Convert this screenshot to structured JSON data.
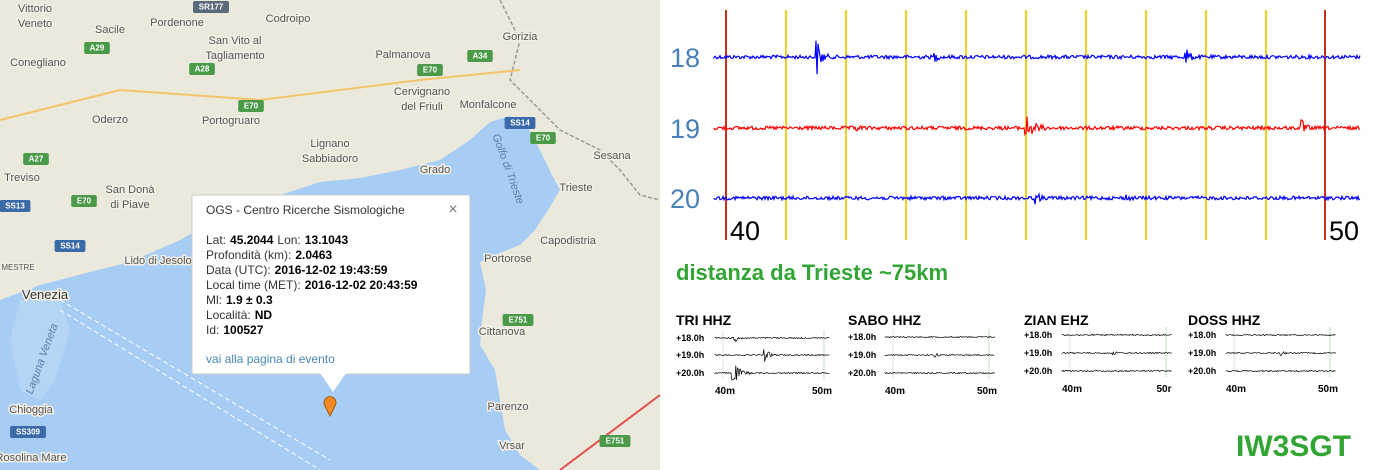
{
  "map": {
    "places": [
      "Vittorio",
      "Veneto",
      "Pordenone",
      "Codroipo",
      "Sacile",
      "San Vito al",
      "Tagliamento",
      "Palmanova",
      "Gorizia",
      "Conegliano",
      "Cervignano",
      "del Friuli",
      "Monfalcone",
      "Oderzo",
      "Portogruaro",
      "Sesana",
      "Treviso",
      "San Donà",
      "di Piave",
      "Lignano",
      "Sabbiadoro",
      "Grado",
      "Golfo di Trieste",
      "Trieste",
      "Capodistria",
      "Lido di Jesolo",
      "Portorose",
      "Venezia",
      "MESTRE",
      "Laguna Veneta",
      "Cittanova",
      "Chioggia",
      "Parenzo",
      "Vrsar",
      "Rosolina Mare"
    ],
    "roads": [
      "SR177",
      "A29",
      "A28",
      "A34",
      "E70",
      "E70",
      "A27",
      "SS14",
      "E70",
      "SS13",
      "SS14",
      "E70",
      "E751",
      "SS309",
      "E751"
    ]
  },
  "popup": {
    "title": "OGS - Centro Ricerche Sismologiche",
    "close": "×",
    "rows": [
      [
        {
          "label": "Lat:",
          "value": "45.2044"
        },
        {
          "label": "Lon:",
          "value": "13.1043"
        }
      ],
      [
        {
          "label": "Profondità (km):",
          "value": "2.0463"
        }
      ],
      [
        {
          "label": "Data (UTC):",
          "value": "2016-12-02 19:43:59"
        }
      ],
      [
        {
          "label": "Local time (MET):",
          "value": "2016-12-02 20:43:59"
        }
      ],
      [
        {
          "label": "Ml:",
          "value": "1.9 ± 0.3"
        }
      ],
      [
        {
          "label": "Località:",
          "value": "ND"
        }
      ],
      [
        {
          "label": "Id:",
          "value": "100527"
        }
      ]
    ],
    "link": "vai alla pagina di evento"
  },
  "seismogram": {
    "hours": [
      "18",
      "19",
      "20"
    ],
    "minutes": [
      "40",
      "50"
    ],
    "distance": "distanza da Trieste ~75km",
    "stations": [
      {
        "name": "TRI HHZ",
        "hours": [
          "+18.0h",
          "+19.0h",
          "+20.0h"
        ],
        "minutes": [
          "40m",
          "50m"
        ]
      },
      {
        "name": "SABO HHZ",
        "hours": [
          "+18.0h",
          "+19.0h",
          "+20.0h"
        ],
        "minutes": [
          "40m",
          "50m"
        ]
      },
      {
        "name": "ZIAN EHZ",
        "hours": [
          "+18.0h",
          "+19.0h",
          "+20.0h"
        ],
        "minutes": [
          "40m",
          "50r"
        ]
      },
      {
        "name": "DOSS HHZ",
        "hours": [
          "+18.0h",
          "+19.0h",
          "+20.0h"
        ],
        "minutes": [
          "40m",
          "50m"
        ]
      }
    ],
    "signature": "IW3SGT"
  }
}
